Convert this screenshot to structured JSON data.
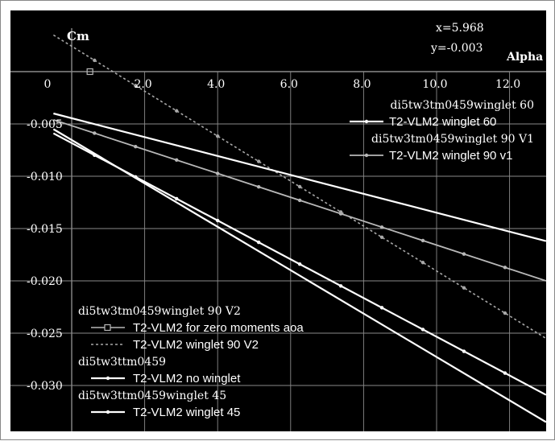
{
  "readout": {
    "x_text": "x=5.968",
    "y_text": "y=-0.003"
  },
  "colors": {
    "background": "#000000",
    "grid": "#8a8a8a",
    "text": "#ffffff",
    "series_bright": "#ffffff",
    "series_grey": "#b8b8b8",
    "series_dashed": "#a8a8a8"
  },
  "chart_data": {
    "type": "line",
    "title": "",
    "xlabel": "Alpha",
    "ylabel": "Cm",
    "xlim": [
      -0.6,
      13.0
    ],
    "ylim": [
      -0.0335,
      0.0045
    ],
    "x_ticks": [
      0,
      2.0,
      4.0,
      6.0,
      8.0,
      10.0,
      12.0
    ],
    "x_tick_labels": [
      "0",
      "2.0",
      "4.0",
      "6.0",
      "8.0",
      "10.0",
      "12.0"
    ],
    "y_ticks": [
      -0.005,
      -0.01,
      -0.015,
      -0.02,
      -0.025,
      -0.03
    ],
    "y_tick_labels": [
      "-0.005",
      "-0.010",
      "-0.015",
      "-0.020",
      "-0.025",
      "-0.030"
    ],
    "grid": true,
    "series": [
      {
        "name": "T2-VLM2 winglet 60",
        "group": "di5tw3tm0459winglet 60",
        "style": "bright",
        "marker": "dot",
        "x": [
          -0.5,
          13.0
        ],
        "y": [
          -0.0059,
          -0.0309
        ]
      },
      {
        "name": "T2-VLM2 winglet 90 v1",
        "group": "di5tw3tm0459winglet 90 V1",
        "style": "grey",
        "marker": "dot",
        "x": [
          -0.5,
          13.0
        ],
        "y": [
          -0.0046,
          -0.02
        ]
      },
      {
        "name": "T2-VLM2 winglet 90 V2",
        "group": "di5tw3tm0459winglet 90 V2",
        "style": "dashed",
        "marker": "dot",
        "x": [
          -0.5,
          13.0
        ],
        "y": [
          0.0035,
          -0.0255
        ]
      },
      {
        "name": "T2-VLM2 no winglet",
        "group": "di5tw3ttm0459",
        "style": "bright",
        "marker": "none",
        "x": [
          -0.5,
          13.0
        ],
        "y": [
          -0.004,
          -0.0162
        ]
      },
      {
        "name": "T2-VLM2 winglet 45",
        "group": "di5tw3ttm0459winglet 45",
        "style": "bright",
        "marker": "none",
        "x": [
          -0.5,
          13.0
        ],
        "y": [
          -0.0055,
          -0.0335
        ]
      }
    ],
    "zero_moment_point": {
      "name": "T2-VLM2  for zero moments aoa",
      "group": "di5tw3tm0459winglet 90 V2",
      "x": 0.5,
      "y": 0.0
    }
  },
  "legend_top": [
    {
      "kind": "group",
      "text": "di5tw3tm0459winglet 60"
    },
    {
      "kind": "entry",
      "text": "T2-VLM2 winglet 60",
      "style": "bright"
    },
    {
      "kind": "group",
      "text": "di5tw3tm0459winglet 90 V1"
    },
    {
      "kind": "entry",
      "text": "T2-VLM2 winglet 90 v1",
      "style": "grey"
    }
  ],
  "legend_bottom": [
    {
      "kind": "group",
      "text": "di5tw3tm0459winglet 90 V2"
    },
    {
      "kind": "entry",
      "text": "T2-VLM2  for zero moments aoa",
      "style": "square"
    },
    {
      "kind": "entry",
      "text": "T2-VLM2  winglet 90 V2",
      "style": "dashed"
    },
    {
      "kind": "group",
      "text": "di5tw3ttm0459"
    },
    {
      "kind": "entry",
      "text": "T2-VLM2 no winglet",
      "style": "bright"
    },
    {
      "kind": "group",
      "text": "di5tw3ttm0459winglet 45"
    },
    {
      "kind": "entry",
      "text": "T2-VLM2 winglet 45",
      "style": "bright"
    }
  ]
}
